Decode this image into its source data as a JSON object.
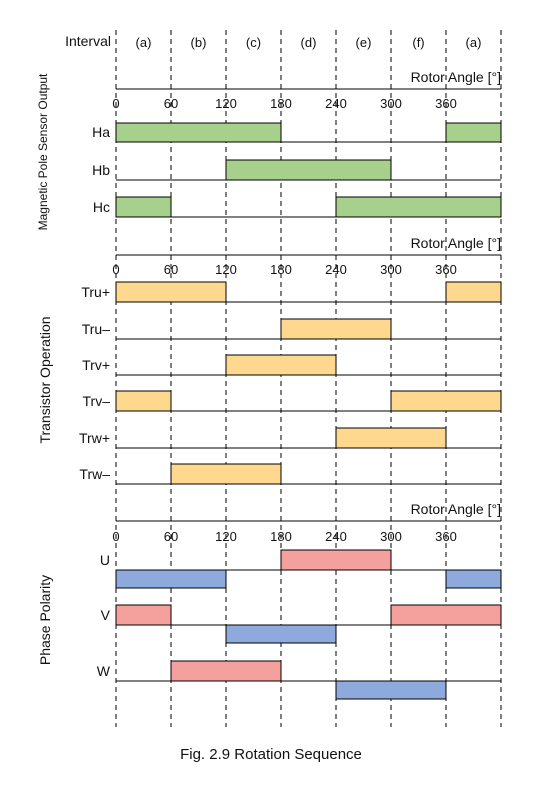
{
  "interval_label": "Interval",
  "intervals": [
    "(a)",
    "(b)",
    "(c)",
    "(d)",
    "(e)",
    "(f)",
    "(a)"
  ],
  "angle_ticks": [
    "0",
    "60",
    "120",
    "180",
    "240",
    "300",
    "360"
  ],
  "colors": {
    "sensor_high": "#a8d08d",
    "transistor_on": "#fdd88e",
    "phase_positive": "#f4a09c",
    "phase_negative": "#8ea9db",
    "line": "#000000"
  },
  "sections": [
    {
      "title": "Magnetic Pole Sensor Output",
      "axis_title": "Rotor Angle [°]",
      "rows": [
        {
          "label": "Ha",
          "segments": [
            {
              "from": 0,
              "to": 180,
              "level": "high"
            },
            {
              "from": 360,
              "to": 420,
              "level": "high"
            }
          ]
        },
        {
          "label": "Hb",
          "segments": [
            {
              "from": 120,
              "to": 300,
              "level": "high"
            }
          ]
        },
        {
          "label": "Hc",
          "segments": [
            {
              "from": 0,
              "to": 60,
              "level": "high"
            },
            {
              "from": 240,
              "to": 420,
              "level": "high"
            }
          ]
        }
      ]
    },
    {
      "title": "Transistor Operation",
      "axis_title": "Rotor Angle [°]",
      "rows": [
        {
          "label": "Tru+",
          "segments": [
            {
              "from": 0,
              "to": 120,
              "level": "on"
            },
            {
              "from": 360,
              "to": 420,
              "level": "on"
            }
          ]
        },
        {
          "label": "Tru–",
          "segments": [
            {
              "from": 180,
              "to": 300,
              "level": "on"
            }
          ]
        },
        {
          "label": "Trv+",
          "segments": [
            {
              "from": 120,
              "to": 240,
              "level": "on"
            }
          ]
        },
        {
          "label": "Trv–",
          "segments": [
            {
              "from": 0,
              "to": 60,
              "level": "on"
            },
            {
              "from": 300,
              "to": 420,
              "level": "on"
            }
          ]
        },
        {
          "label": "Trw+",
          "segments": [
            {
              "from": 240,
              "to": 360,
              "level": "on"
            }
          ]
        },
        {
          "label": "Trw–",
          "segments": [
            {
              "from": 60,
              "to": 180,
              "level": "on"
            }
          ]
        }
      ]
    },
    {
      "title": "Phase Polarity",
      "axis_title": "Rotor Angle [°]",
      "rows": [
        {
          "label": "U",
          "segments": [
            {
              "from": 180,
              "to": 300,
              "level": "positive"
            },
            {
              "from": 0,
              "to": 120,
              "level": "negative"
            },
            {
              "from": 360,
              "to": 420,
              "level": "negative"
            }
          ]
        },
        {
          "label": "V",
          "segments": [
            {
              "from": 0,
              "to": 60,
              "level": "positive"
            },
            {
              "from": 300,
              "to": 420,
              "level": "positive"
            },
            {
              "from": 120,
              "to": 240,
              "level": "negative"
            }
          ]
        },
        {
          "label": "W",
          "segments": [
            {
              "from": 60,
              "to": 180,
              "level": "positive"
            },
            {
              "from": 240,
              "to": 360,
              "level": "negative"
            }
          ]
        }
      ]
    }
  ],
  "caption": "Fig. 2.9    Rotation Sequence"
}
